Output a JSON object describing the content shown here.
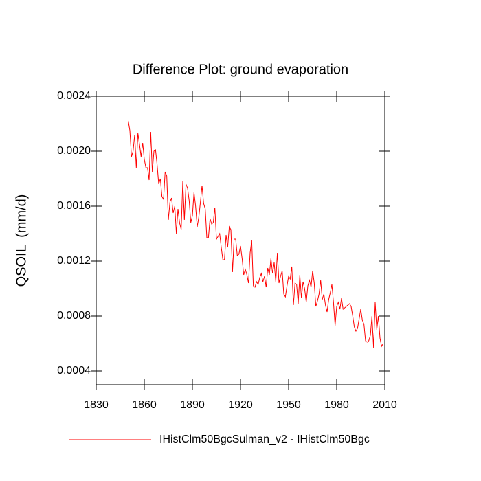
{
  "chart_data": {
    "type": "line",
    "title": "Difference Plot: ground evaporation",
    "y_label": "QSOIL  (mm/d)",
    "x": [
      1850,
      1851,
      1852,
      1853,
      1854,
      1855,
      1856,
      1857,
      1858,
      1859,
      1860,
      1861,
      1862,
      1863,
      1864,
      1865,
      1866,
      1867,
      1868,
      1869,
      1870,
      1871,
      1872,
      1873,
      1874,
      1875,
      1876,
      1877,
      1878,
      1879,
      1880,
      1881,
      1882,
      1883,
      1884,
      1885,
      1886,
      1887,
      1888,
      1889,
      1890,
      1891,
      1892,
      1893,
      1894,
      1895,
      1896,
      1897,
      1898,
      1899,
      1900,
      1901,
      1902,
      1903,
      1904,
      1905,
      1906,
      1907,
      1908,
      1909,
      1910,
      1911,
      1912,
      1913,
      1914,
      1915,
      1916,
      1917,
      1918,
      1919,
      1920,
      1921,
      1922,
      1923,
      1924,
      1925,
      1926,
      1927,
      1928,
      1929,
      1930,
      1931,
      1932,
      1933,
      1934,
      1935,
      1936,
      1937,
      1938,
      1939,
      1940,
      1941,
      1942,
      1943,
      1944,
      1945,
      1946,
      1947,
      1948,
      1949,
      1950,
      1951,
      1952,
      1953,
      1954,
      1955,
      1956,
      1957,
      1958,
      1959,
      1960,
      1961,
      1962,
      1963,
      1964,
      1965,
      1966,
      1967,
      1968,
      1969,
      1970,
      1971,
      1972,
      1973,
      1974,
      1975,
      1976,
      1977,
      1978,
      1979,
      1980,
      1981,
      1982,
      1983,
      1984,
      1985,
      1986,
      1987,
      1988,
      1989,
      1990,
      1991,
      1992,
      1993,
      1994,
      1995,
      1996,
      1997,
      1998,
      1999,
      2000,
      2001,
      2002,
      2003,
      2004,
      2005,
      2006,
      2007,
      2008,
      2009
    ],
    "series": [
      {
        "name": "IHistClm50BgcSulman_v2 - IHistClm50Bgc",
        "color": "#ff0000",
        "values": [
          0.00222,
          0.00215,
          0.00196,
          0.002,
          0.00212,
          0.00188,
          0.00213,
          0.00205,
          0.00196,
          0.00206,
          0.00194,
          0.00188,
          0.00188,
          0.00179,
          0.00214,
          0.00185,
          0.002,
          0.00201,
          0.0019,
          0.00176,
          0.0018,
          0.00167,
          0.00165,
          0.00185,
          0.00182,
          0.0015,
          0.00163,
          0.00166,
          0.00155,
          0.0016,
          0.0014,
          0.00158,
          0.00148,
          0.00143,
          0.00178,
          0.0015,
          0.00176,
          0.00173,
          0.00164,
          0.00148,
          0.00153,
          0.0017,
          0.0016,
          0.00145,
          0.00152,
          0.00163,
          0.00175,
          0.00162,
          0.00158,
          0.00137,
          0.00137,
          0.00151,
          0.00147,
          0.00148,
          0.00159,
          0.00136,
          0.00138,
          0.0014,
          0.0013,
          0.00121,
          0.00121,
          0.00139,
          0.0013,
          0.00145,
          0.00143,
          0.00112,
          0.00136,
          0.00136,
          0.00124,
          0.00125,
          0.00131,
          0.00122,
          0.0011,
          0.00114,
          0.0011,
          0.00104,
          0.00126,
          0.00135,
          0.00102,
          0.00101,
          0.00105,
          0.00103,
          0.00108,
          0.00111,
          0.00105,
          0.00109,
          0.00101,
          0.00115,
          0.0011,
          0.00122,
          0.00111,
          0.00119,
          0.00105,
          0.00126,
          0.00104,
          0.00109,
          0.00113,
          0.00096,
          0.00094,
          0.00102,
          0.00109,
          0.00107,
          0.00116,
          0.00088,
          0.00104,
          0.00103,
          0.00089,
          0.0011,
          0.00093,
          0.00105,
          0.001,
          0.0009,
          0.00102,
          0.00106,
          0.00101,
          0.00113,
          0.00104,
          0.00087,
          0.00091,
          0.00096,
          0.00106,
          0.00092,
          0.00096,
          0.00088,
          0.00083,
          0.00092,
          0.00097,
          0.00103,
          0.0009,
          0.00073,
          0.00087,
          0.0009,
          0.00085,
          0.00093,
          0.00085,
          0.00086,
          0.00087,
          0.00088,
          0.00089,
          0.00087,
          0.0008,
          0.00072,
          0.00069,
          0.00071,
          0.00078,
          0.00085,
          0.00077,
          0.00074,
          0.00062,
          0.00061,
          0.00062,
          0.00066,
          0.0008,
          0.00057,
          0.0009,
          0.0007,
          0.0008,
          0.00064,
          0.00058,
          0.0006
        ]
      }
    ],
    "xlim": [
      1830,
      2010
    ],
    "xticks": [
      1830,
      1860,
      1890,
      1920,
      1950,
      1980,
      2010
    ],
    "ylim": [
      0.0003,
      0.0024
    ],
    "yticks": [
      {
        "value": 0.0004,
        "label": "0.0004"
      },
      {
        "value": 0.0008,
        "label": "0.0008"
      },
      {
        "value": 0.0012,
        "label": "0.0012"
      },
      {
        "value": 0.0016,
        "label": "0.0016"
      },
      {
        "value": 0.002,
        "label": "0.0020"
      },
      {
        "value": 0.0024,
        "label": "0.0024"
      }
    ]
  }
}
